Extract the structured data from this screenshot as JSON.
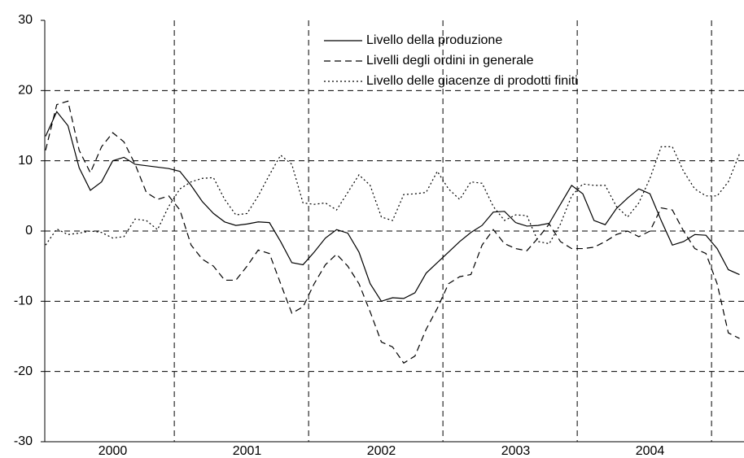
{
  "chart_data": {
    "type": "line",
    "categories": [
      null,
      null,
      null,
      null,
      null,
      null,
      "2000",
      null,
      null,
      null,
      null,
      null,
      null,
      null,
      null,
      null,
      null,
      null,
      "2001",
      null,
      null,
      null,
      null,
      null,
      null,
      null,
      null,
      null,
      null,
      null,
      "2002",
      null,
      null,
      null,
      null,
      null,
      null,
      null,
      null,
      null,
      null,
      null,
      "2003",
      null,
      null,
      null,
      null,
      null,
      null,
      null,
      null,
      null,
      null,
      null,
      "2004",
      null,
      null,
      null,
      null,
      null,
      null,
      null,
      null
    ],
    "series": [
      {
        "name": "Livello della produzione",
        "color": "#000000",
        "dash": "solid",
        "values": [
          13.5,
          17,
          15,
          9,
          5.8,
          7,
          10,
          10.5,
          9.5,
          9.3,
          9.1,
          8.9,
          8.5,
          6.5,
          4.2,
          2.5,
          1.3,
          0.8,
          1.0,
          1.3,
          1.2,
          -1.5,
          -4.5,
          -4.8,
          -3,
          -1,
          0.2,
          -0.3,
          -3,
          -7.5,
          -10,
          -9.5,
          -9.6,
          -8.8,
          -6,
          -4.5,
          -3,
          -1.5,
          -0.2,
          0.8,
          2.7,
          2.8,
          1.2,
          0.7,
          0.8,
          1.1,
          3.8,
          6.5,
          5.3,
          1.5,
          0.9,
          3.2,
          4.7,
          6,
          5.3,
          1.5,
          -2,
          -1.5,
          -0.5,
          -0.6,
          -2.5,
          -5.5,
          -6.2
        ]
      },
      {
        "name": "Livelli degli ordini in generale",
        "color": "#000000",
        "dash": "dashed",
        "values": [
          11.5,
          18,
          18.5,
          11.5,
          8.3,
          12,
          14,
          12.7,
          9.5,
          5.5,
          4.5,
          5,
          3,
          -2,
          -4,
          -5,
          -7,
          -7,
          -5,
          -2.7,
          -3.2,
          -7.5,
          -11.7,
          -10.8,
          -7.5,
          -4.8,
          -3.3,
          -5,
          -7.5,
          -11.5,
          -15.8,
          -16.5,
          -18.8,
          -17.8,
          -14,
          -11,
          -7.5,
          -6.5,
          -6.2,
          -2,
          0.2,
          -1.8,
          -2.5,
          -2.8,
          -1,
          1,
          -1.5,
          -2.5,
          -2.5,
          -2.3,
          -1.5,
          -0.5,
          0,
          -0.8,
          0,
          3.3,
          3,
          0,
          -2.5,
          -3.2,
          -7.5,
          -14.5,
          -15.3
        ]
      },
      {
        "name": "Livello delle giacenze di prodotti finiti",
        "color": "#000000",
        "dash": "dotted",
        "values": [
          -2,
          0.3,
          -0.5,
          -0.3,
          0,
          -0.2,
          -1,
          -0.8,
          1.7,
          1.5,
          0.2,
          3.5,
          6,
          7,
          7.5,
          7.6,
          4.5,
          2.3,
          2.5,
          5,
          8,
          10.8,
          9.5,
          4,
          3.8,
          4,
          3,
          5.5,
          8,
          6.5,
          2,
          1.5,
          5.2,
          5.3,
          5.5,
          8.5,
          6,
          4.5,
          7,
          6.8,
          3.5,
          1.5,
          2.3,
          2.2,
          -1.5,
          -1.8,
          1,
          5,
          6.7,
          6.5,
          6.5,
          3.5,
          2,
          4,
          7.5,
          12,
          12,
          8.5,
          6,
          5,
          5,
          7,
          11
        ]
      }
    ],
    "ylim": [
      -30,
      30
    ],
    "yticks": [
      -30,
      -20,
      -10,
      0,
      10,
      20,
      30
    ],
    "grid": true
  }
}
